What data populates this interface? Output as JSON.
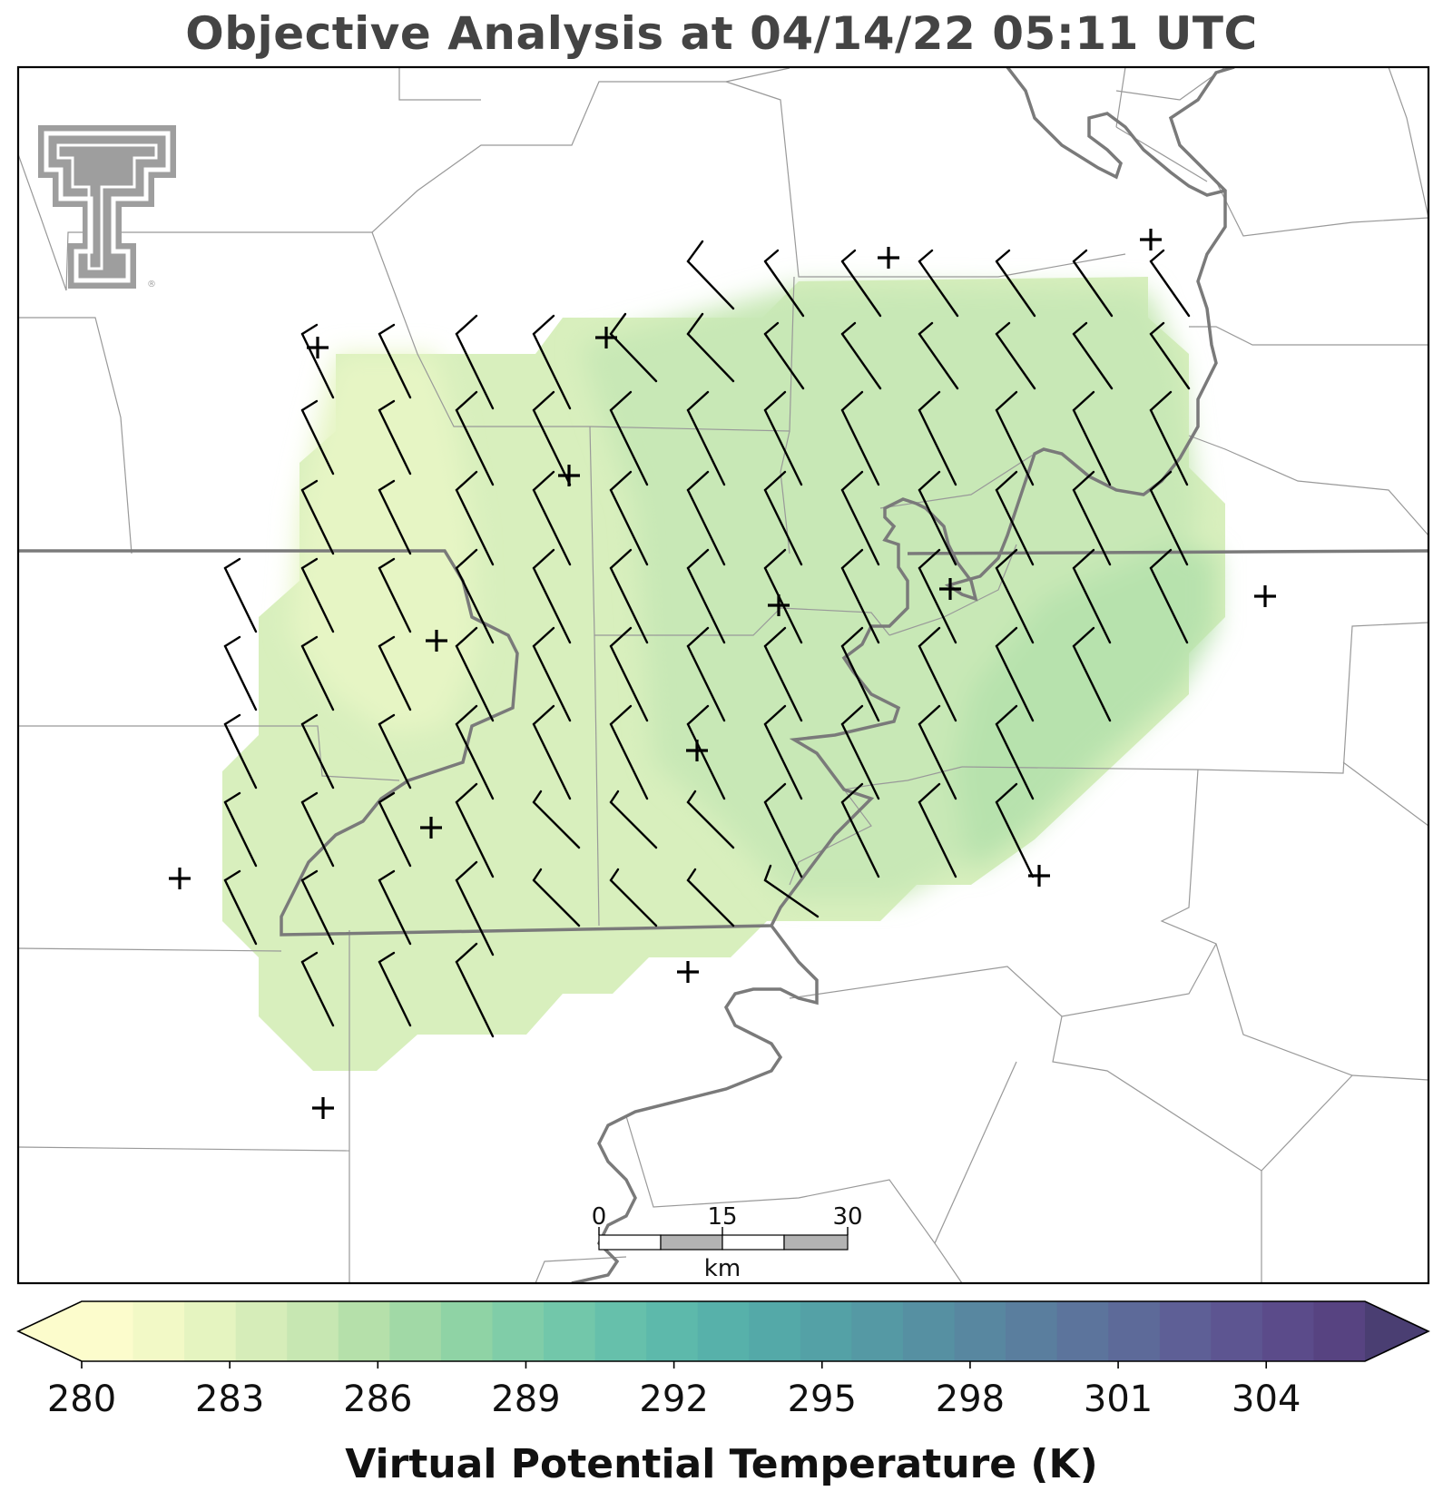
{
  "title": "Objective Analysis at 04/14/22 05:11 UTC",
  "logo": {
    "name": "texas-tech-double-t-logo",
    "mark": "®",
    "color": "#9e9e9e"
  },
  "scale_bar": {
    "labels": [
      "0",
      "15",
      "30"
    ],
    "unit": "km"
  },
  "colorbar": {
    "title": "Virtual Potential Temperature (K)",
    "min": 280,
    "max": 306,
    "tick_values": [
      280,
      283,
      286,
      289,
      292,
      295,
      298,
      301,
      304
    ],
    "tick_labels": [
      "280",
      "283",
      "286",
      "289",
      "292",
      "295",
      "298",
      "301",
      "304"
    ],
    "colors": [
      "#fcfccc",
      "#f2f9c6",
      "#e5f4c0",
      "#d6edb9",
      "#c7e7b2",
      "#b5e0aa",
      "#a1d9a6",
      "#8fd3a5",
      "#80cda8",
      "#72c7aa",
      "#66c0ab",
      "#5db9ab",
      "#57b1aa",
      "#54a9a8",
      "#54a1a6",
      "#5599a4",
      "#5690a2",
      "#5887a0",
      "#5a7e9e",
      "#5c749c",
      "#5d6a99",
      "#5e5f96",
      "#5d5591",
      "#5b4b8a",
      "#574381"
    ],
    "under_color": "#fcfccc",
    "over_color": "#4a3e72"
  },
  "field_colors": {
    "cool": "#e6f5c4",
    "light": "#d8efbd",
    "mid": "#c8e8b6",
    "warm": "#b7e2ad",
    "warmest": "#addfa8"
  },
  "line_colors": {
    "county": "#999999",
    "river": "#7a7a7a",
    "state": "#707070",
    "frame": "#000000"
  }
}
